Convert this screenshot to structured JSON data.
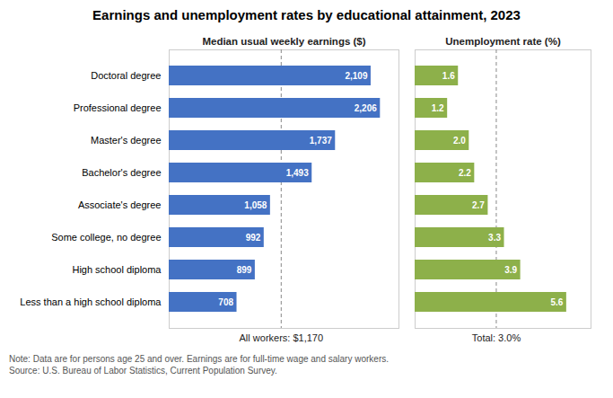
{
  "title": "Earnings and unemployment rates by educational attainment, 2023",
  "notes": [
    "Note: Data are for persons age 25 and over. Earnings are for full-time wage and salary workers.",
    "Source: U.S. Bureau of Labor Statistics, Current Population Survey."
  ],
  "chart_data": [
    {
      "type": "bar",
      "orientation": "horizontal",
      "title": "Median usual weekly earnings ($)",
      "categories": [
        "Doctoral degree",
        "Professional degree",
        "Master's degree",
        "Bachelor's degree",
        "Associate's degree",
        "Some college, no degree",
        "High school diploma",
        "Less than a high school diploma"
      ],
      "values": [
        2109,
        2206,
        1737,
        1493,
        1058,
        992,
        899,
        708
      ],
      "value_labels": [
        "2,109",
        "2,206",
        "1,737",
        "1,493",
        "1,058",
        "992",
        "899",
        "708"
      ],
      "color": "#4472C4",
      "xlim": [
        0,
        2400
      ],
      "xticks": [],
      "data_labels": true,
      "tick_labels": "y",
      "grid": false,
      "annotations": [
        {
          "x": 1170,
          "label": "All workers: $1,170",
          "line_style": "dashed"
        }
      ]
    },
    {
      "type": "bar",
      "orientation": "horizontal",
      "title": "Unemployment rate (%)",
      "categories": [
        "Doctoral degree",
        "Professional degree",
        "Master's degree",
        "Bachelor's degree",
        "Associate's degree",
        "Some college, no degree",
        "High school diploma",
        "Less than a high school diploma"
      ],
      "values": [
        1.6,
        1.2,
        2.0,
        2.2,
        2.7,
        3.3,
        3.9,
        5.6
      ],
      "value_labels": [
        "1.6",
        "1.2",
        "2.0",
        "2.2",
        "2.7",
        "3.3",
        "3.9",
        "5.6"
      ],
      "color": "#8DB04A",
      "xlim": [
        0,
        6.5
      ],
      "xticks": [],
      "data_labels": true,
      "tick_labels": false,
      "grid": false,
      "annotations": [
        {
          "x": 3.0,
          "label": "Total: 3.0%",
          "line_style": "dashed"
        }
      ]
    }
  ]
}
